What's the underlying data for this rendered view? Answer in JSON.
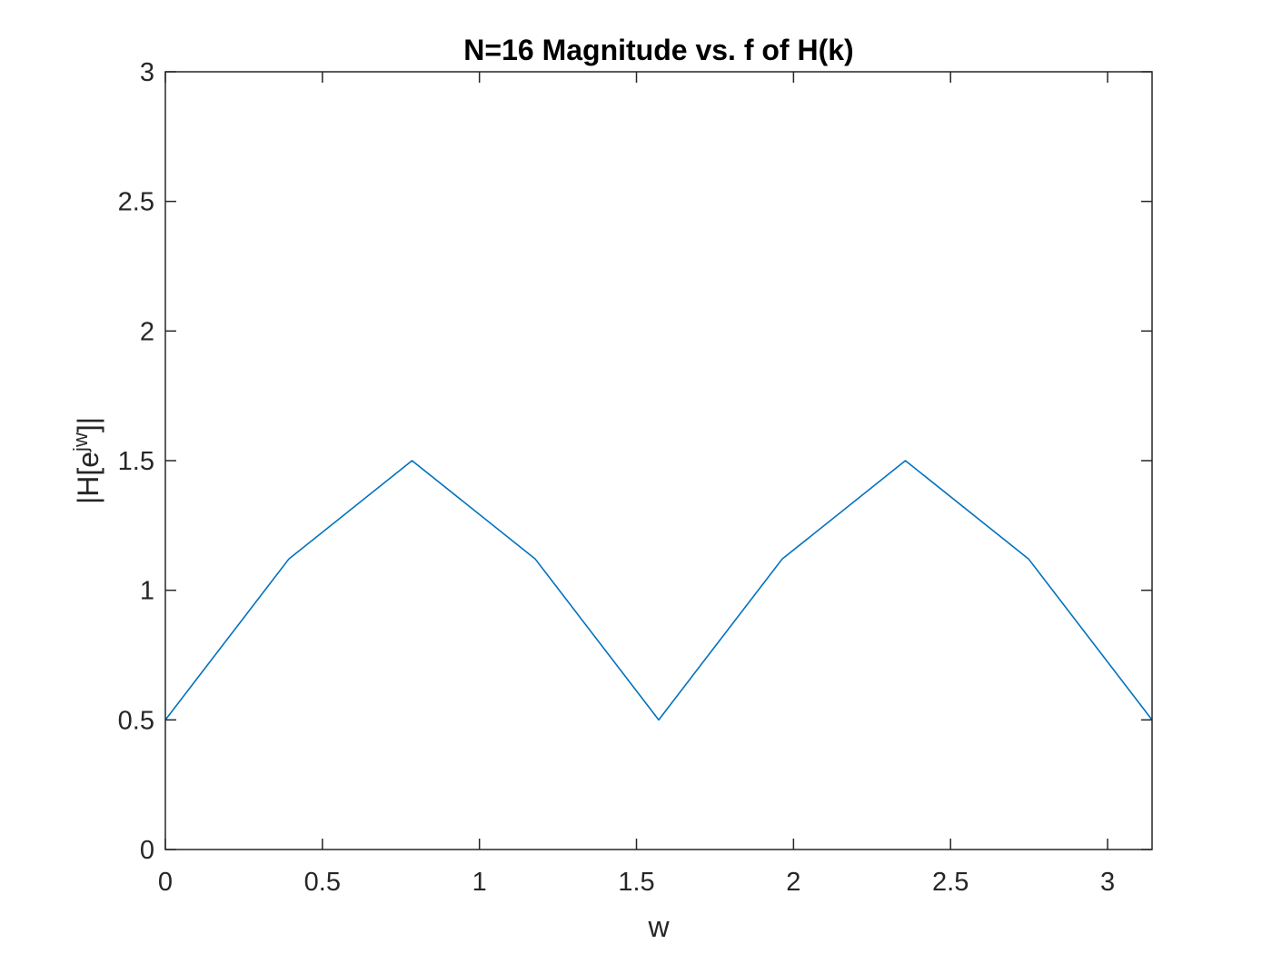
{
  "chart_data": {
    "type": "line",
    "title": "N=16 Magnitude vs. f of H(k)",
    "xlabel": "w",
    "ylabel": {
      "base": "|H[e",
      "sup": "jw",
      "tail": "]|"
    },
    "xlim": [
      0,
      3.1416
    ],
    "ylim": [
      0,
      3
    ],
    "xticks": [
      {
        "value": 0,
        "label": "0"
      },
      {
        "value": 0.5,
        "label": "0.5"
      },
      {
        "value": 1,
        "label": "1"
      },
      {
        "value": 1.5,
        "label": "1.5"
      },
      {
        "value": 2,
        "label": "2"
      },
      {
        "value": 2.5,
        "label": "2.5"
      },
      {
        "value": 3,
        "label": "3"
      }
    ],
    "yticks": [
      {
        "value": 0,
        "label": "0"
      },
      {
        "value": 0.5,
        "label": "0.5"
      },
      {
        "value": 1,
        "label": "1"
      },
      {
        "value": 1.5,
        "label": "1.5"
      },
      {
        "value": 2,
        "label": "2"
      },
      {
        "value": 2.5,
        "label": "2.5"
      },
      {
        "value": 3,
        "label": "3"
      }
    ],
    "grid": false,
    "series": [
      {
        "color": "#0072BD",
        "x": [
          0,
          0.3927,
          0.7854,
          1.1781,
          1.5708,
          1.9635,
          2.3562,
          2.7489,
          3.1416
        ],
        "y": [
          0.5,
          1.12,
          1.5,
          1.12,
          0.5,
          1.12,
          1.5,
          1.12,
          0.5
        ]
      }
    ]
  }
}
